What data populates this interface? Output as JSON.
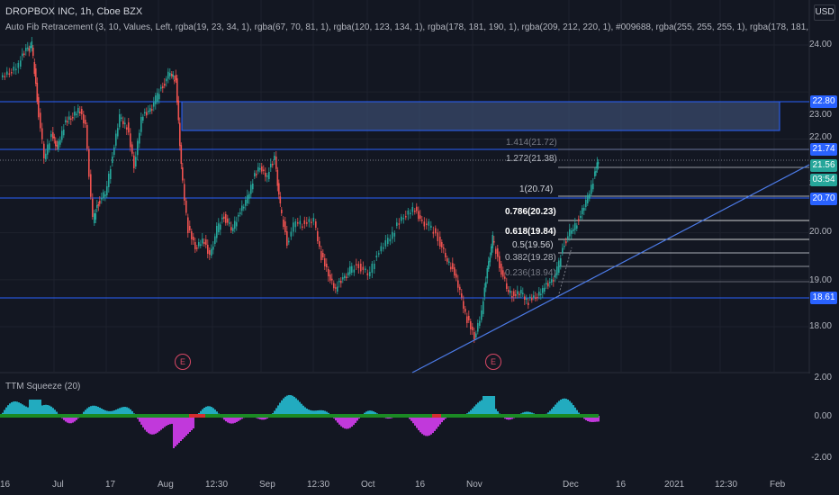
{
  "header": {
    "title": "DROPBOX INC, 1h, Cboe BZX",
    "indicator": "Auto Fib Retracement (3, 10, Values, Left, rgba(19, 23, 34, 1), rgba(67, 70, 81, 1), rgba(120, 123, 134, 1), rgba(178, 181, 190, 1), rgba(209, 212, 220, 1), #009688, rgba(255, 255, 255, 1), rgba(178, 181, 190, 1), rgba(149, 152, 161, 1"
  },
  "currency_button": "USD",
  "oscillator": {
    "title": "TTM Squeeze (20)"
  },
  "colors": {
    "background": "#131722",
    "up_candle": "#26a69a",
    "down_candle": "#ef5350",
    "hline": "#2962ff",
    "zone_fill": "#3a4a6b",
    "fib_line": "#b2b5be",
    "osc_pos": "#26c6da",
    "osc_neg": "#e040fb",
    "squeeze_on": "#1b8a24"
  },
  "price_axis": [
    "24.00",
    "23.00",
    "22.00",
    "21.00",
    "20.00",
    "19.00",
    "18.00"
  ],
  "osc_axis": [
    "2.00",
    "0.00",
    "-2.00"
  ],
  "price_tags": [
    {
      "name": "price-tag-22-80",
      "text": "22.80",
      "value": 22.8,
      "color": "#2962ff"
    },
    {
      "name": "price-tag-21-74",
      "text": "21.74",
      "value": 21.74,
      "color": "#2962ff"
    },
    {
      "name": "price-tag-21-56",
      "text": "21.56",
      "value": 21.56,
      "color": "#26a69a"
    },
    {
      "name": "price-tag-countdown",
      "text": "03:54",
      "value": 21.22,
      "color": "#26a69a"
    },
    {
      "name": "price-tag-20-70",
      "text": "20.70",
      "value": 20.7,
      "color": "#2962ff"
    },
    {
      "name": "price-tag-18-61",
      "text": "18.61",
      "value": 18.61,
      "color": "#2962ff"
    }
  ],
  "fib_levels": [
    {
      "text": "1.414(21.72)",
      "value": 21.72
    },
    {
      "text": "1.272(21.38)",
      "value": 21.38
    },
    {
      "text": "1(20.74)",
      "value": 20.74
    },
    {
      "text": "0.786(20.23)",
      "value": 20.23
    },
    {
      "text": "0.618(19.84)",
      "value": 19.84
    },
    {
      "text": "0.5(19.56)",
      "value": 19.56
    },
    {
      "text": "0.382(19.28)",
      "value": 19.28
    },
    {
      "text": "0.236(18.94)",
      "value": 18.94
    }
  ],
  "time_axis": [
    "16",
    "Jul",
    "17",
    "Aug",
    "12:30",
    "Sep",
    "12:30",
    "Oct",
    "16",
    "Nov",
    "Dec",
    "16",
    "2021",
    "12:30",
    "Feb"
  ],
  "earnings": [
    "E",
    "E"
  ]
}
